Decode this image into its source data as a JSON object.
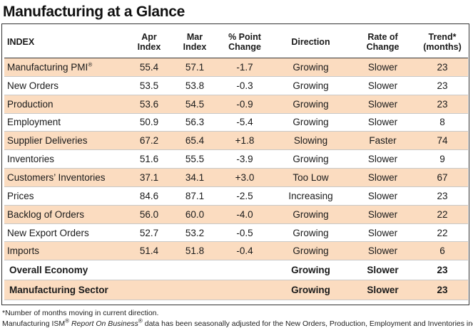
{
  "title": "Manufacturing at a Glance",
  "headers": {
    "index": "INDEX",
    "apr": [
      "Apr",
      "Index"
    ],
    "mar": [
      "Mar",
      "Index"
    ],
    "pct": [
      "% Point",
      "Change"
    ],
    "direction": "Direction",
    "rate": [
      "Rate of",
      "Change"
    ],
    "trend": [
      "Trend*",
      "(months)"
    ]
  },
  "rows": [
    {
      "index": "Manufacturing PMI",
      "sup": "®",
      "apr": "55.4",
      "mar": "57.1",
      "change": "-1.7",
      "direction": "Growing",
      "rate": "Slower",
      "trend": "23",
      "shaded": true
    },
    {
      "index": "New Orders",
      "apr": "53.5",
      "mar": "53.8",
      "change": "-0.3",
      "direction": "Growing",
      "rate": "Slower",
      "trend": "23",
      "shaded": false
    },
    {
      "index": "Production",
      "apr": "53.6",
      "mar": "54.5",
      "change": "-0.9",
      "direction": "Growing",
      "rate": "Slower",
      "trend": "23",
      "shaded": true
    },
    {
      "index": "Employment",
      "apr": "50.9",
      "mar": "56.3",
      "change": "-5.4",
      "direction": "Growing",
      "rate": "Slower",
      "trend": "8",
      "shaded": false
    },
    {
      "index": "Supplier Deliveries",
      "apr": "67.2",
      "mar": "65.4",
      "change": "+1.8",
      "direction": "Slowing",
      "rate": "Faster",
      "trend": "74",
      "shaded": true
    },
    {
      "index": "Inventories",
      "apr": "51.6",
      "mar": "55.5",
      "change": "-3.9",
      "direction": "Growing",
      "rate": "Slower",
      "trend": "9",
      "shaded": false
    },
    {
      "index": "Customers’ Inventories",
      "apr": "37.1",
      "mar": "34.1",
      "change": "+3.0",
      "direction": "Too Low",
      "rate": "Slower",
      "trend": "67",
      "shaded": true
    },
    {
      "index": "Prices",
      "apr": "84.6",
      "mar": "87.1",
      "change": "-2.5",
      "direction": "Increasing",
      "rate": "Slower",
      "trend": "23",
      "shaded": false
    },
    {
      "index": "Backlog of Orders",
      "apr": "56.0",
      "mar": "60.0",
      "change": "-4.0",
      "direction": "Growing",
      "rate": "Slower",
      "trend": "22",
      "shaded": true
    },
    {
      "index": "New Export Orders",
      "apr": "52.7",
      "mar": "53.2",
      "change": "-0.5",
      "direction": "Growing",
      "rate": "Slower",
      "trend": "22",
      "shaded": false
    },
    {
      "index": "Imports",
      "apr": "51.4",
      "mar": "51.8",
      "change": "-0.4",
      "direction": "Growing",
      "rate": "Slower",
      "trend": "6",
      "shaded": true
    }
  ],
  "summary": [
    {
      "index": "Overall Economy",
      "direction": "Growing",
      "rate": "Slower",
      "trend": "23",
      "shaded": false
    },
    {
      "index": "Manufacturing Sector",
      "direction": "Growing",
      "rate": "Slower",
      "trend": "23",
      "shaded": true
    }
  ],
  "footnotes": {
    "line1": "*Number of months moving in current direction.",
    "line2_prefix": "Manufacturing ISM",
    "line2_sup1": "®",
    "line2_italic": "Report On Business",
    "line2_sup2": "®",
    "line2_suffix": " data has been seasonally adjusted for the New Orders, Production, Employment and Inventories indexes."
  },
  "colors": {
    "row_shade": "#fbdcc0",
    "text": "#1a1a1a",
    "border": "#333333"
  }
}
